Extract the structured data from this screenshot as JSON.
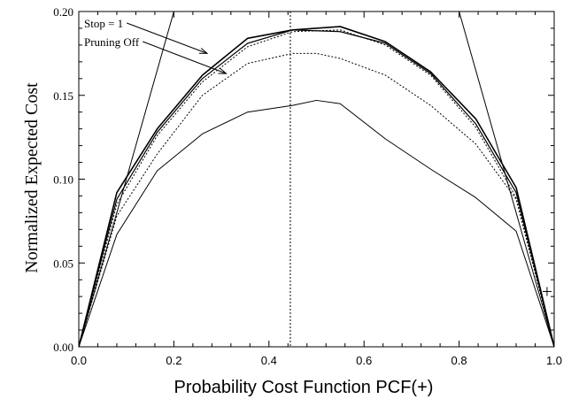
{
  "chart_data": {
    "type": "line",
    "title": "",
    "xlabel": "Probability Cost Function PCF(+)",
    "ylabel": "Normalized Expected Cost",
    "xlim": [
      0,
      1
    ],
    "ylim": [
      0,
      0.2
    ],
    "xticks": [
      0.0,
      0.2,
      0.4,
      0.6,
      0.8,
      1.0
    ],
    "xtick_labels": [
      "0.0",
      "0.2",
      "0.4",
      "0.6",
      "0.8",
      "1.0"
    ],
    "yticks": [
      0.0,
      0.05,
      0.1,
      0.15,
      0.2
    ],
    "ytick_labels": [
      "0.00",
      "0.05",
      "0.10",
      "0.15",
      "0.20"
    ],
    "grid": false,
    "vertical_line": {
      "x": 0.445,
      "style": "dotted"
    },
    "trivial_lines": [
      {
        "points": [
          [
            0,
            0
          ],
          [
            0.2,
            0.2
          ]
        ],
        "style": "solid"
      },
      {
        "points": [
          [
            0.8,
            0.2
          ],
          [
            1.0,
            0
          ]
        ],
        "style": "solid"
      }
    ],
    "series": [
      {
        "style": "solid",
        "width": 1.6,
        "x": [
          0,
          0.08,
          0.165,
          0.26,
          0.355,
          0.45,
          0.55,
          0.645,
          0.74,
          0.835,
          0.92,
          1.0
        ],
        "y": [
          0,
          0.092,
          0.13,
          0.162,
          0.184,
          0.189,
          0.191,
          0.182,
          0.164,
          0.136,
          0.095,
          0
        ]
      },
      {
        "style": "solid",
        "width": 1.2,
        "x": [
          0,
          0.08,
          0.165,
          0.26,
          0.355,
          0.45,
          0.55,
          0.645,
          0.74,
          0.835,
          0.92,
          1.0
        ],
        "y": [
          0,
          0.088,
          0.128,
          0.16,
          0.181,
          0.189,
          0.188,
          0.181,
          0.163,
          0.133,
          0.092,
          0
        ]
      },
      {
        "style": "dotted",
        "width": 1,
        "x": [
          0,
          0.08,
          0.165,
          0.26,
          0.355,
          0.45,
          0.55,
          0.645,
          0.74,
          0.835,
          0.92,
          1.0
        ],
        "y": [
          0,
          0.085,
          0.126,
          0.158,
          0.179,
          0.188,
          0.189,
          0.18,
          0.162,
          0.131,
          0.089,
          0
        ]
      },
      {
        "style": "dotted",
        "width": 1,
        "x": [
          0,
          0.08,
          0.165,
          0.26,
          0.355,
          0.45,
          0.5,
          0.55,
          0.645,
          0.74,
          0.835,
          0.92,
          1.0
        ],
        "y": [
          0,
          0.078,
          0.115,
          0.15,
          0.169,
          0.175,
          0.175,
          0.172,
          0.162,
          0.144,
          0.121,
          0.088,
          0
        ]
      },
      {
        "style": "solid",
        "width": 1,
        "x": [
          0,
          0.08,
          0.165,
          0.26,
          0.355,
          0.45,
          0.5,
          0.55,
          0.645,
          0.74,
          0.835,
          0.92,
          1.0
        ],
        "y": [
          0,
          0.067,
          0.105,
          0.127,
          0.14,
          0.144,
          0.147,
          0.145,
          0.124,
          0.106,
          0.089,
          0.069,
          0
        ]
      }
    ],
    "annotations": [
      {
        "text": "Stop = 1",
        "arrow_to": [
          0.27,
          0.175
        ]
      },
      {
        "text": "Pruning Off",
        "arrow_to": [
          0.31,
          0.163
        ]
      }
    ],
    "marker": {
      "symbol": "+",
      "x": 0.985,
      "y": 0.033
    }
  }
}
